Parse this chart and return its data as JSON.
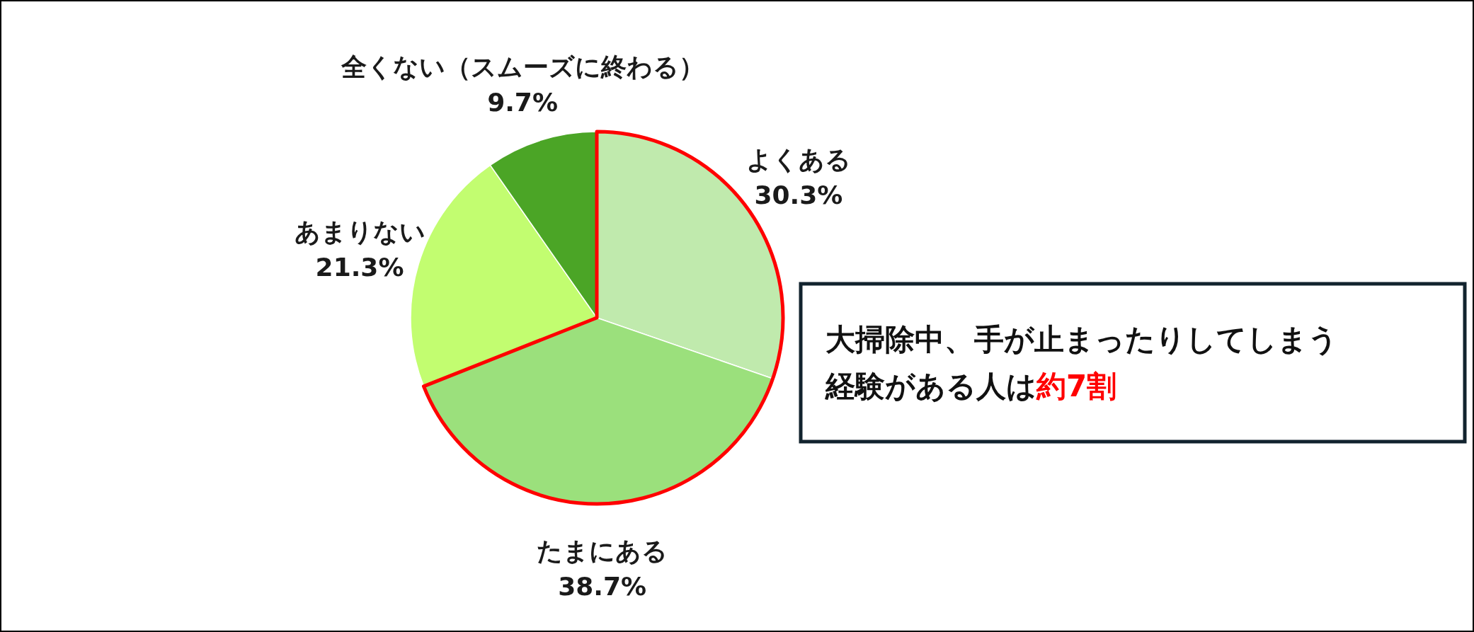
{
  "chart_data": {
    "type": "pie",
    "categories": [
      "よくある",
      "たまにある",
      "あまりない",
      "全くない（スムーズに終わる）"
    ],
    "values": [
      30.3,
      38.7,
      21.3,
      9.7
    ],
    "colors": [
      "#c0eaad",
      "#9be07c",
      "#c2fd70",
      "#4ba526"
    ],
    "value_labels": [
      "30.3%",
      "38.7%",
      "21.3%",
      "9.7%"
    ],
    "annotations": [
      "大掃除中、手が止まったりしてしまう",
      "経験がある人は",
      "約7割"
    ]
  }
}
